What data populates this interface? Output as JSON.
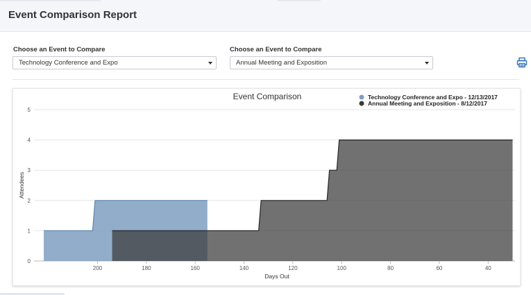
{
  "page": {
    "title": "Event Comparison Report"
  },
  "selectors": [
    {
      "label": "Choose an Event to Compare",
      "value": "Technology Conference and Expo"
    },
    {
      "label": "Choose an Event to Compare",
      "value": "Annual Meeting and Exposition"
    }
  ],
  "toolbar": {
    "print_icon": "printer-icon",
    "accent_color": "#2a6fb8"
  },
  "chart_data": {
    "type": "area",
    "title": "Event Comparison",
    "xlabel": "Days Out",
    "ylabel": "Attendees",
    "xlim": [
      226,
      29
    ],
    "x_reversed": true,
    "ylim": [
      0,
      5
    ],
    "x_ticks": [
      200,
      180,
      160,
      140,
      120,
      100,
      80,
      60,
      40
    ],
    "y_ticks": [
      0,
      1,
      2,
      3,
      4,
      5
    ],
    "grid": true,
    "legend_position": "top-right",
    "step": true,
    "series": [
      {
        "name": "Technology Conference and Expo - 12/13/2017",
        "color": "#7f9fbf",
        "points": [
          [
            222,
            1
          ],
          [
            202,
            1
          ],
          [
            201,
            2
          ],
          [
            155,
            2
          ]
        ]
      },
      {
        "name": "Annual Meeting and Exposition - 8/12/2017",
        "color": "#3a3a3a",
        "points": [
          [
            194,
            1
          ],
          [
            134,
            1
          ],
          [
            133,
            2
          ],
          [
            106,
            2
          ],
          [
            105,
            3
          ],
          [
            102,
            3
          ],
          [
            101,
            4
          ],
          [
            30,
            4
          ]
        ]
      }
    ]
  }
}
